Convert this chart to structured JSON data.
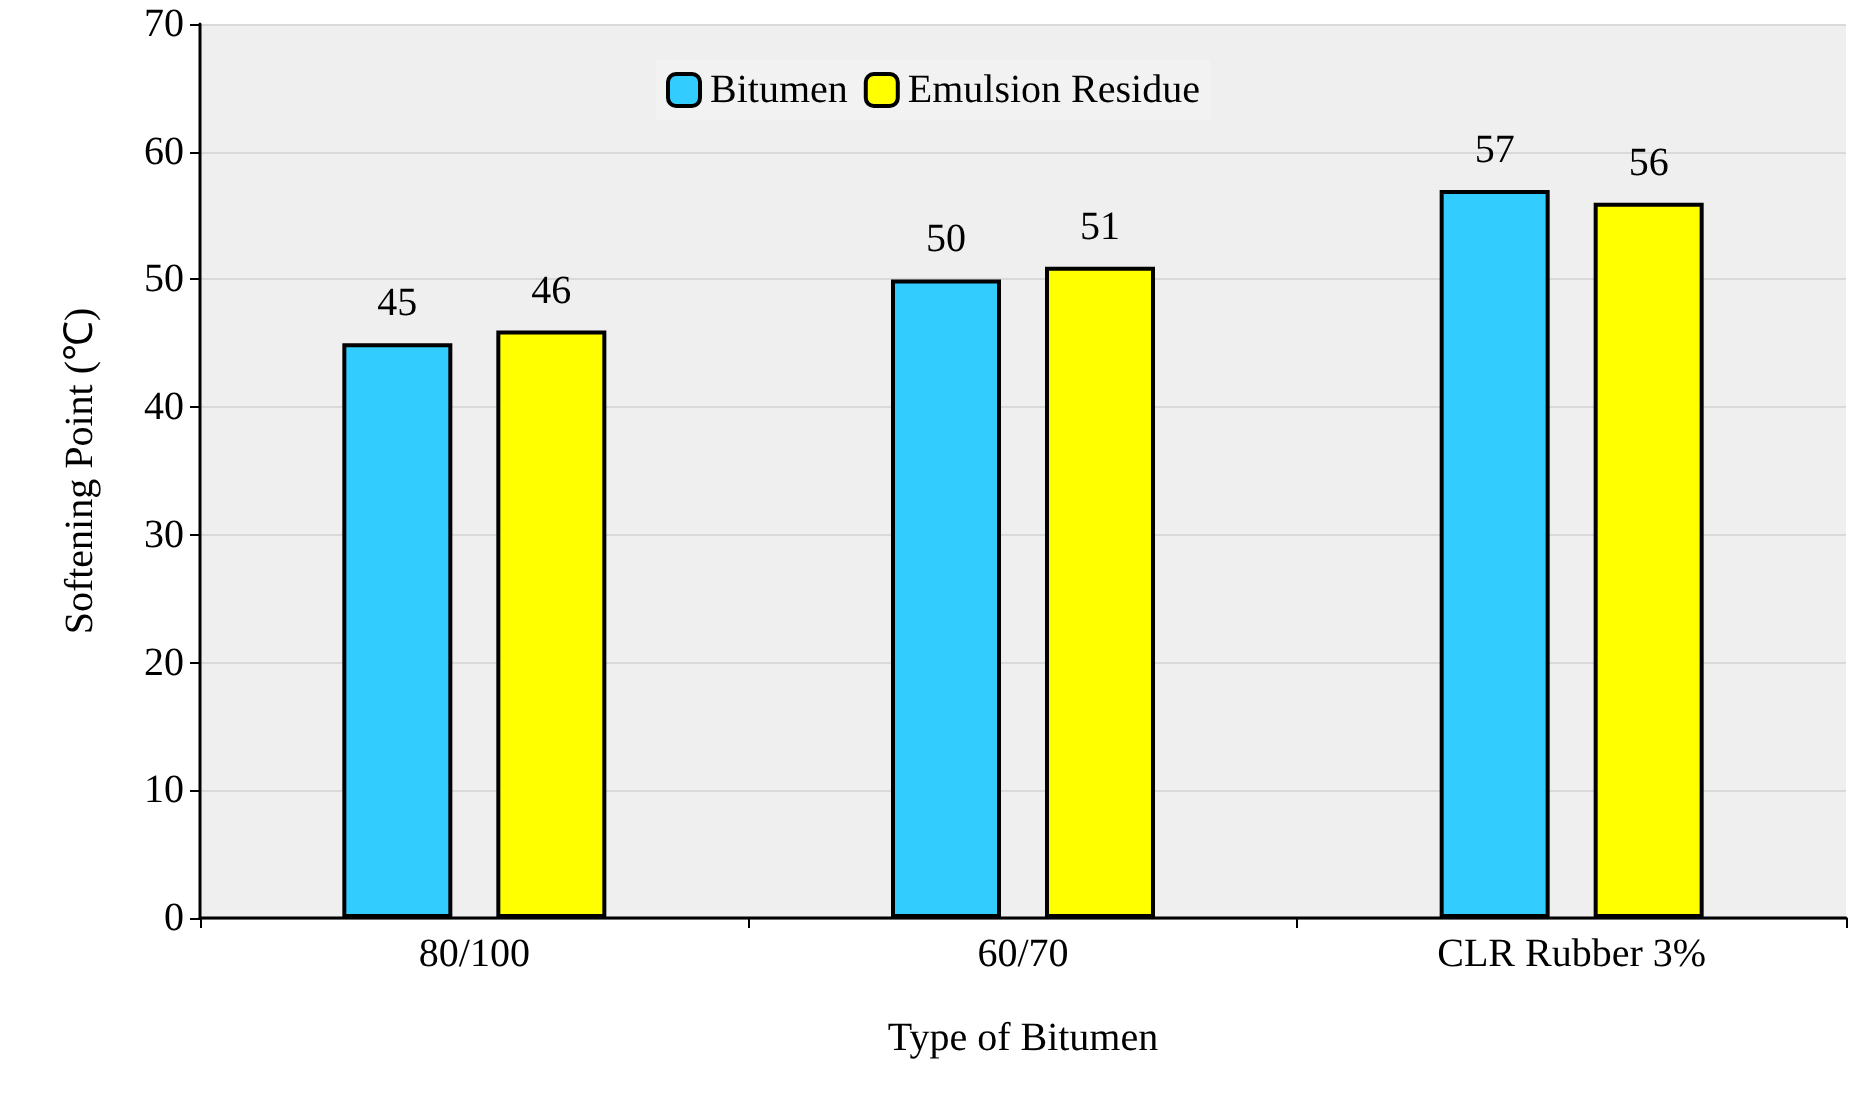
{
  "chart_data": {
    "type": "bar",
    "xlabel": "Type of Bitumen",
    "ylabel": "Softening Point (℃)",
    "categories": [
      "80/100",
      "60/70",
      "CLR Rubber 3%"
    ],
    "series": [
      {
        "name": "Bitumen",
        "color": "#33ccff",
        "values": [
          45,
          50,
          57
        ]
      },
      {
        "name": "Emulsion Residue",
        "color": "#ffff00",
        "values": [
          46,
          51,
          56
        ]
      }
    ],
    "ylim": [
      0,
      70
    ],
    "yticks": [
      0,
      10,
      20,
      30,
      40,
      50,
      60,
      70
    ],
    "grid": "y",
    "legend": "top",
    "data_labels": true
  }
}
